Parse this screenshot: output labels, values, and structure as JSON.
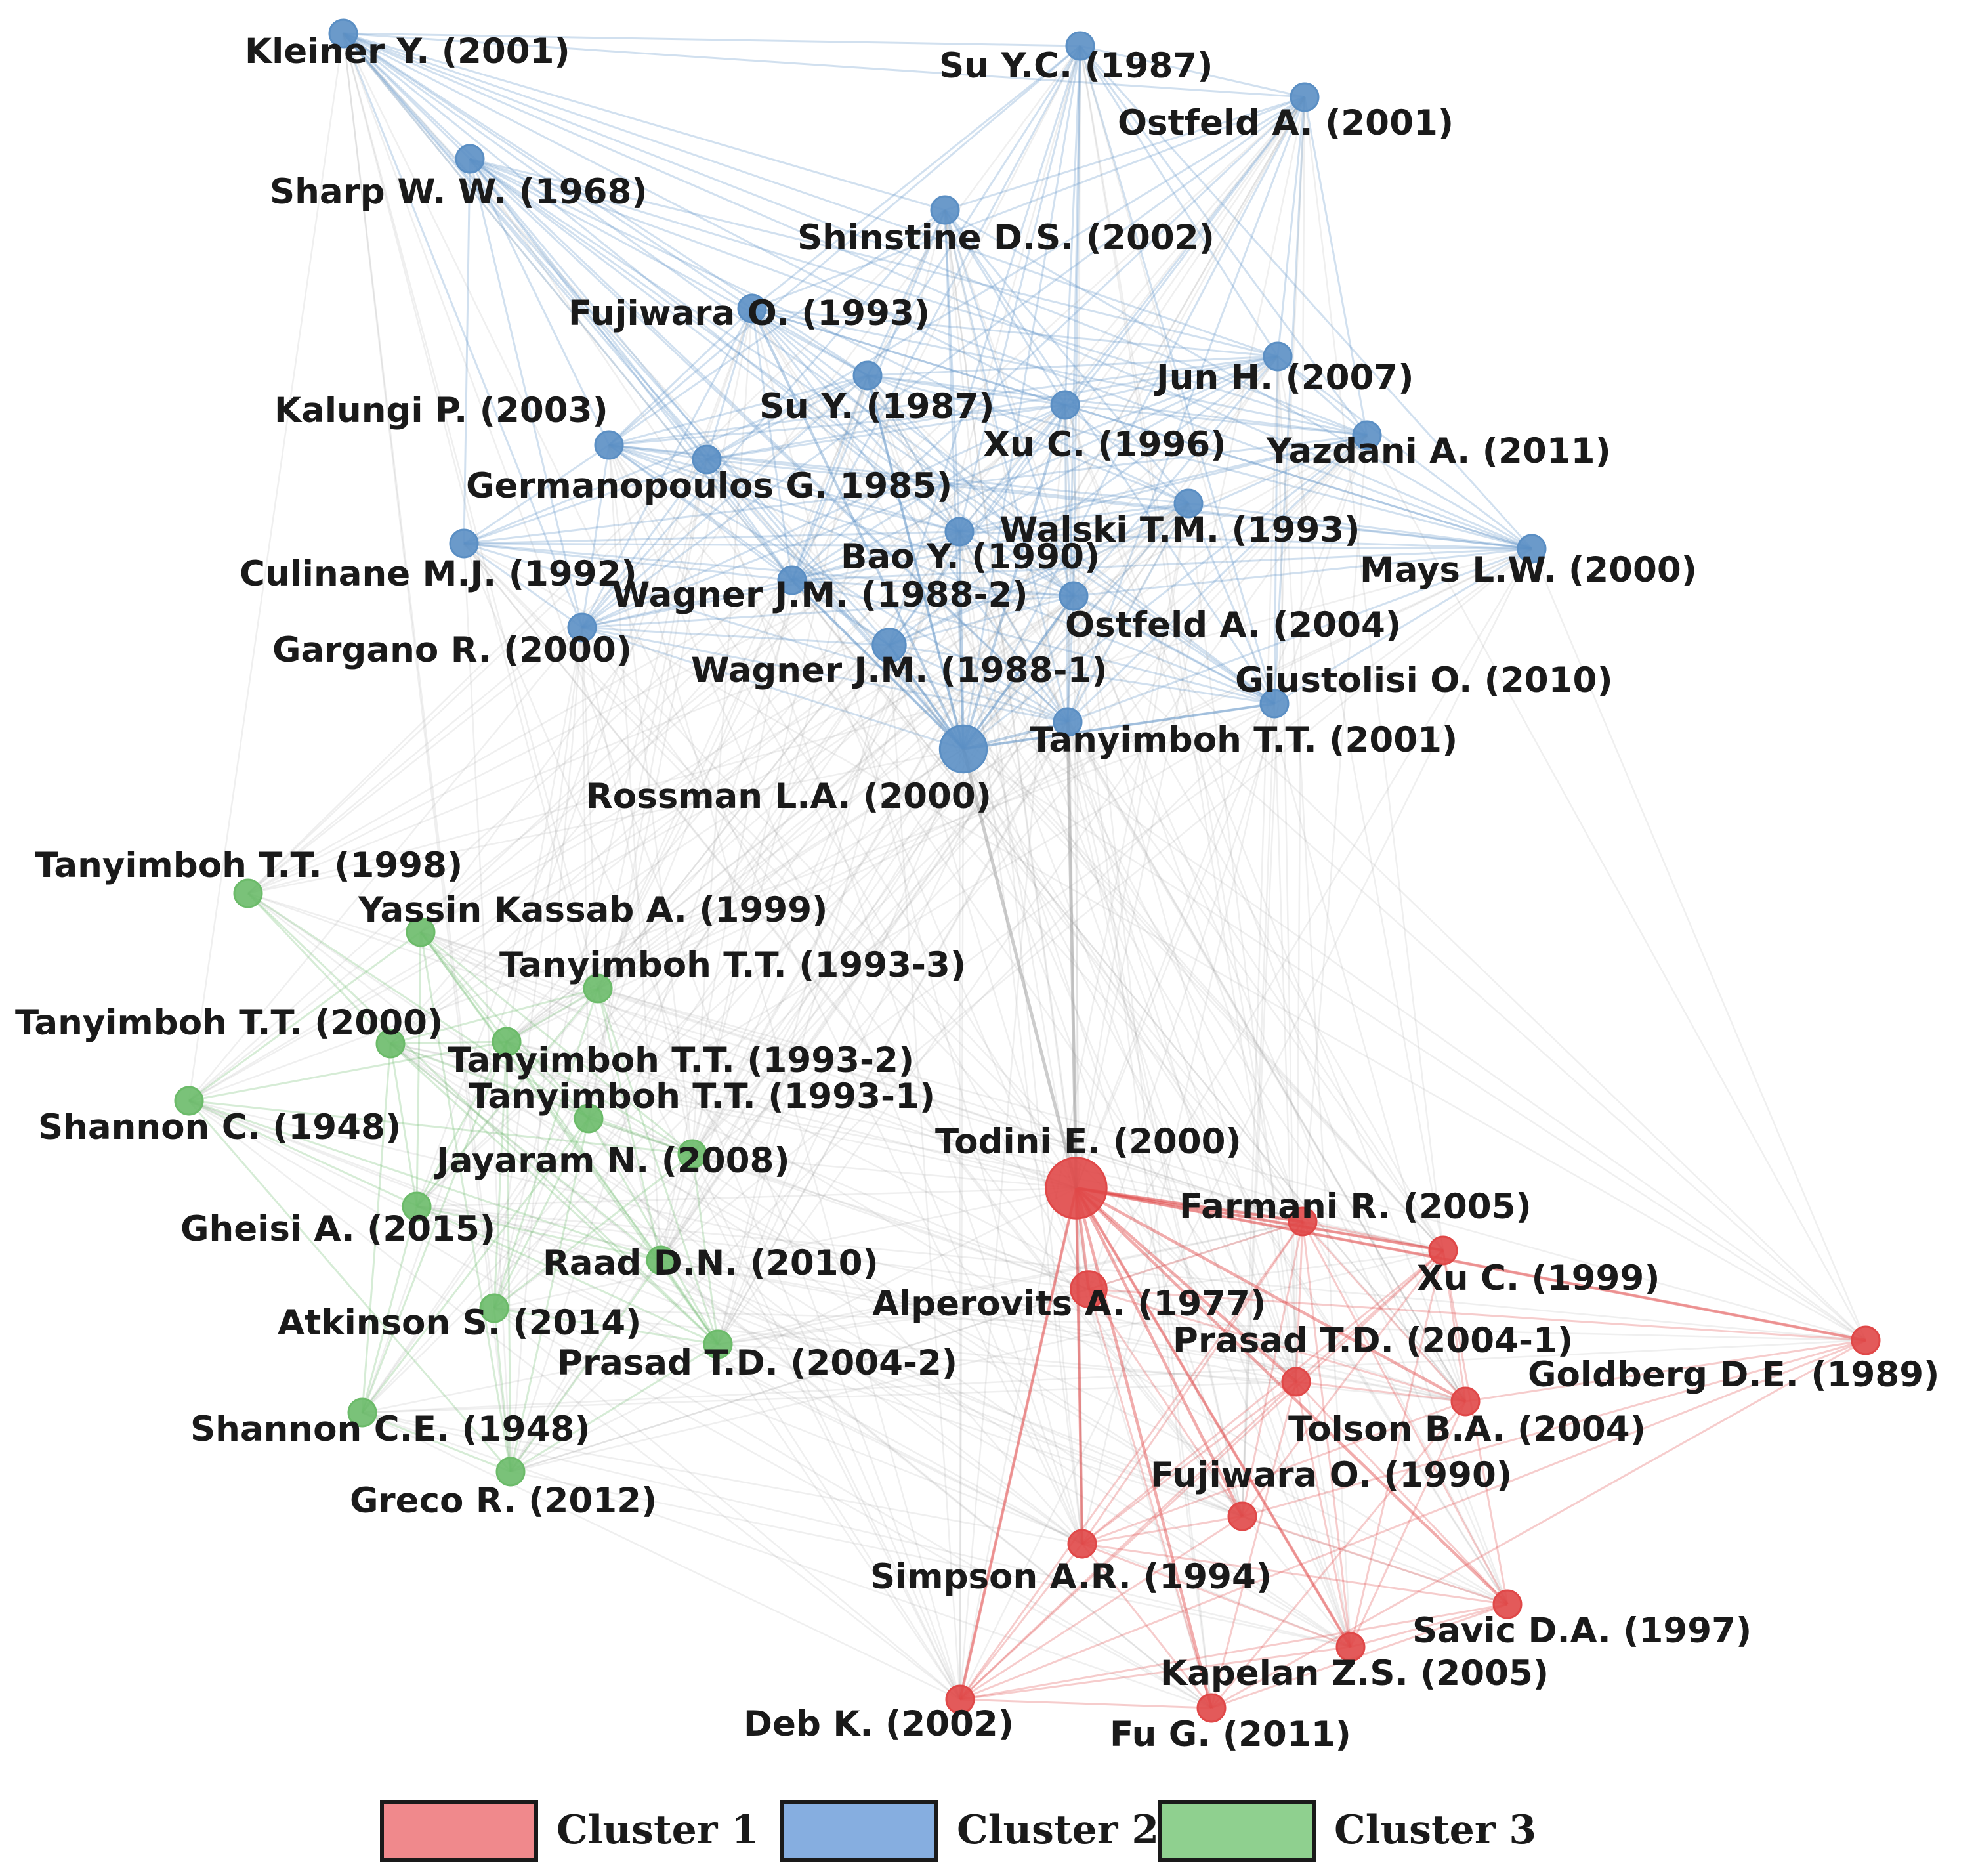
{
  "colors": {
    "cluster_1": "#e04848",
    "cluster_2": "#5b8fc4",
    "cluster_3": "#6cbb6a",
    "edge_neutral": "#9a9a9a",
    "legend_1": "#f0898c",
    "legend_2": "#86aee0",
    "legend_3": "#8fd08f"
  },
  "legend": [
    {
      "key": "1",
      "label": "Cluster 1"
    },
    {
      "key": "2",
      "label": "Cluster 2"
    },
    {
      "key": "3",
      "label": "Cluster 3"
    }
  ],
  "nodes": [
    {
      "id": "kleiner2001",
      "label": "Kleiner Y. (2001)",
      "cluster": 2,
      "size": 1
    },
    {
      "id": "suyc1987",
      "label": "Su Y.C. (1987)",
      "cluster": 2,
      "size": 1
    },
    {
      "id": "ostfeld2001",
      "label": "Ostfeld A. (2001)",
      "cluster": 2,
      "size": 1
    },
    {
      "id": "sharp1968",
      "label": "Sharp W. W. (1968)",
      "cluster": 2,
      "size": 1
    },
    {
      "id": "shinstine2002",
      "label": "Shinstine D.S. (2002)",
      "cluster": 2,
      "size": 1
    },
    {
      "id": "fujiwara1993",
      "label": "Fujiwara O. (1993)",
      "cluster": 2,
      "size": 1
    },
    {
      "id": "jun2007",
      "label": "Jun H. (2007)",
      "cluster": 2,
      "size": 1
    },
    {
      "id": "suy1987",
      "label": "Su Y. (1987)",
      "cluster": 2,
      "size": 1
    },
    {
      "id": "kalungi2003",
      "label": "Kalungi P. (2003)",
      "cluster": 2,
      "size": 1
    },
    {
      "id": "xu1996",
      "label": "Xu C. (1996)",
      "cluster": 2,
      "size": 1
    },
    {
      "id": "yazdani2011",
      "label": "Yazdani A. (2011)",
      "cluster": 2,
      "size": 1
    },
    {
      "id": "germanopoulos1985",
      "label": "Germanopoulos G. 1985)",
      "cluster": 2,
      "size": 1
    },
    {
      "id": "walski1993",
      "label": "Walski T.M. (1993)",
      "cluster": 2,
      "size": 1
    },
    {
      "id": "culinane1992",
      "label": "Culinane M.J. (1992)",
      "cluster": 2,
      "size": 1
    },
    {
      "id": "bao1990",
      "label": "Bao Y. (1990)",
      "cluster": 2,
      "size": 1
    },
    {
      "id": "mays2000",
      "label": "Mays L.W. (2000)",
      "cluster": 2,
      "size": 1
    },
    {
      "id": "wagner1988b",
      "label": "Wagner J.M. (1988-2)",
      "cluster": 2,
      "size": 1
    },
    {
      "id": "ostfeld2004",
      "label": "Ostfeld A. (2004)",
      "cluster": 2,
      "size": 1
    },
    {
      "id": "gargano2000",
      "label": "Gargano R. (2000)",
      "cluster": 2,
      "size": 1
    },
    {
      "id": "wagner1988a",
      "label": "Wagner J.M. (1988-1)",
      "cluster": 2,
      "size": 1.2
    },
    {
      "id": "giustolisi2010",
      "label": "Giustolisi O. (2010)",
      "cluster": 2,
      "size": 1
    },
    {
      "id": "tanyimboh2001",
      "label": "Tanyimboh T.T. (2001)",
      "cluster": 2,
      "size": 1
    },
    {
      "id": "rossman2000",
      "label": "Rossman L.A. (2000)",
      "cluster": 2,
      "size": 1.7
    },
    {
      "id": "tanyimboh1998",
      "label": "Tanyimboh T.T. (1998)",
      "cluster": 3,
      "size": 1
    },
    {
      "id": "yassin1999",
      "label": "Yassin Kassab A. (1999)",
      "cluster": 3,
      "size": 1
    },
    {
      "id": "tanyimboh1993c",
      "label": "Tanyimboh T.T. (1993-3)",
      "cluster": 3,
      "size": 1
    },
    {
      "id": "tanyimboh2000",
      "label": "Tanyimboh T.T. (2000)",
      "cluster": 3,
      "size": 1
    },
    {
      "id": "tanyimboh1993b",
      "label": "Tanyimboh T.T. (1993-2)",
      "cluster": 3,
      "size": 1
    },
    {
      "id": "shannonc1948",
      "label": "Shannon C. (1948)",
      "cluster": 3,
      "size": 1
    },
    {
      "id": "tanyimboh1993a",
      "label": "Tanyimboh T.T. (1993-1)",
      "cluster": 3,
      "size": 1
    },
    {
      "id": "jayaram2008",
      "label": "Jayaram N. (2008)",
      "cluster": 3,
      "size": 1
    },
    {
      "id": "gheisi2015",
      "label": "Gheisi A. (2015)",
      "cluster": 3,
      "size": 1
    },
    {
      "id": "raad2010",
      "label": "Raad D.N. (2010)",
      "cluster": 3,
      "size": 1
    },
    {
      "id": "atkinson2014",
      "label": "Atkinson S. (2014)",
      "cluster": 3,
      "size": 1
    },
    {
      "id": "prasad2004b",
      "label": "Prasad T.D. (2004-2)",
      "cluster": 3,
      "size": 1
    },
    {
      "id": "shannonce1948",
      "label": "Shannon C.E. (1948)",
      "cluster": 3,
      "size": 1
    },
    {
      "id": "greco2012",
      "label": "Greco R. (2012)",
      "cluster": 3,
      "size": 1
    },
    {
      "id": "todini2000",
      "label": "Todini E. (2000)",
      "cluster": 1,
      "size": 2.2
    },
    {
      "id": "farmani2005",
      "label": "Farmani R. (2005)",
      "cluster": 1,
      "size": 1
    },
    {
      "id": "xu1999",
      "label": "Xu C. (1999)",
      "cluster": 1,
      "size": 1
    },
    {
      "id": "alperovits1977",
      "label": "Alperovits A. (1977)",
      "cluster": 1,
      "size": 1.3
    },
    {
      "id": "prasad2004a",
      "label": "Prasad T.D. (2004-1)",
      "cluster": 1,
      "size": 1
    },
    {
      "id": "goldberg1989",
      "label": "Goldberg D.E. (1989)",
      "cluster": 1,
      "size": 1
    },
    {
      "id": "tolson2004",
      "label": "Tolson B.A. (2004)",
      "cluster": 1,
      "size": 1
    },
    {
      "id": "fujiwara1990",
      "label": "Fujiwara O. (1990)",
      "cluster": 1,
      "size": 1
    },
    {
      "id": "simpson1994",
      "label": "Simpson A.R. (1994)",
      "cluster": 1,
      "size": 1
    },
    {
      "id": "savic1997",
      "label": "Savic D.A. (1997)",
      "cluster": 1,
      "size": 1
    },
    {
      "id": "kapelan2005",
      "label": "Kapelan Z.S. (2005)",
      "cluster": 1,
      "size": 1
    },
    {
      "id": "deb2002",
      "label": "Deb K. (2002)",
      "cluster": 1,
      "size": 1
    },
    {
      "id": "fu2011",
      "label": "Fu G. (2011)",
      "cluster": 1,
      "size": 1
    }
  ]
}
